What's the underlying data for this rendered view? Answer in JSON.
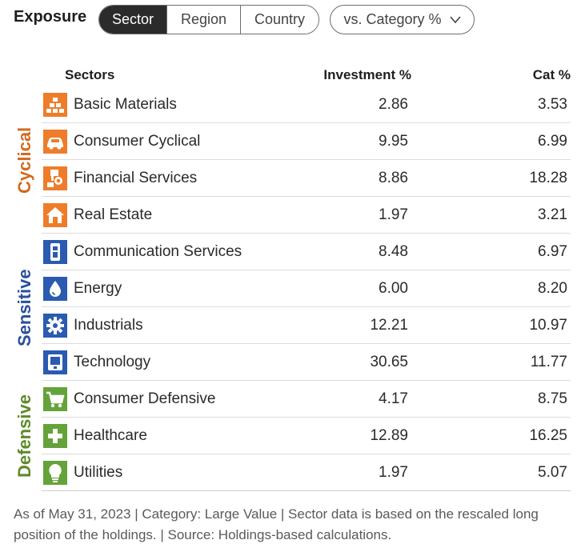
{
  "header": {
    "title": "Exposure",
    "tabs": [
      {
        "label": "Sector",
        "active": true
      },
      {
        "label": "Region",
        "active": false
      },
      {
        "label": "Country",
        "active": false
      }
    ],
    "compare_dropdown": {
      "label": "vs. Category %"
    }
  },
  "table": {
    "columns": {
      "sector": "Sectors",
      "investment": "Investment  %",
      "category": "Cat  %"
    },
    "groups": [
      {
        "label": "Cyclical",
        "color": "#d2691e"
      },
      {
        "label": "Sensitive",
        "color": "#2a4f9e"
      },
      {
        "label": "Defensive",
        "color": "#5f8a2a"
      }
    ],
    "rows": [
      {
        "name": "Basic Materials",
        "investment": "2.86",
        "category": "3.53",
        "icon": "basic-materials-icon",
        "color": "#ee7d2b"
      },
      {
        "name": "Consumer Cyclical",
        "investment": "9.95",
        "category": "6.99",
        "icon": "consumer-cyclical-icon",
        "color": "#ee7d2b"
      },
      {
        "name": "Financial Services",
        "investment": "8.86",
        "category": "18.28",
        "icon": "financial-services-icon",
        "color": "#ee7d2b"
      },
      {
        "name": "Real Estate",
        "investment": "1.97",
        "category": "3.21",
        "icon": "real-estate-icon",
        "color": "#ee7d2b"
      },
      {
        "name": "Communication Services",
        "investment": "8.48",
        "category": "6.97",
        "icon": "communication-services-icon",
        "color": "#2a5bb0"
      },
      {
        "name": "Energy",
        "investment": "6.00",
        "category": "8.20",
        "icon": "energy-icon",
        "color": "#2a5bb0"
      },
      {
        "name": "Industrials",
        "investment": "12.21",
        "category": "10.97",
        "icon": "industrials-icon",
        "color": "#2a5bb0"
      },
      {
        "name": "Technology",
        "investment": "30.65",
        "category": "11.77",
        "icon": "technology-icon",
        "color": "#2a5bb0"
      },
      {
        "name": "Consumer Defensive",
        "investment": "4.17",
        "category": "8.75",
        "icon": "consumer-defensive-icon",
        "color": "#64a33a"
      },
      {
        "name": "Healthcare",
        "investment": "12.89",
        "category": "16.25",
        "icon": "healthcare-icon",
        "color": "#64a33a"
      },
      {
        "name": "Utilities",
        "investment": "1.97",
        "category": "5.07",
        "icon": "utilities-icon",
        "color": "#64a33a"
      }
    ]
  },
  "footer": {
    "note": "As of May 31, 2023 | Category: Large Value | Sector data is based on the rescaled long position of the holdings. | Source: Holdings-based calculations."
  }
}
